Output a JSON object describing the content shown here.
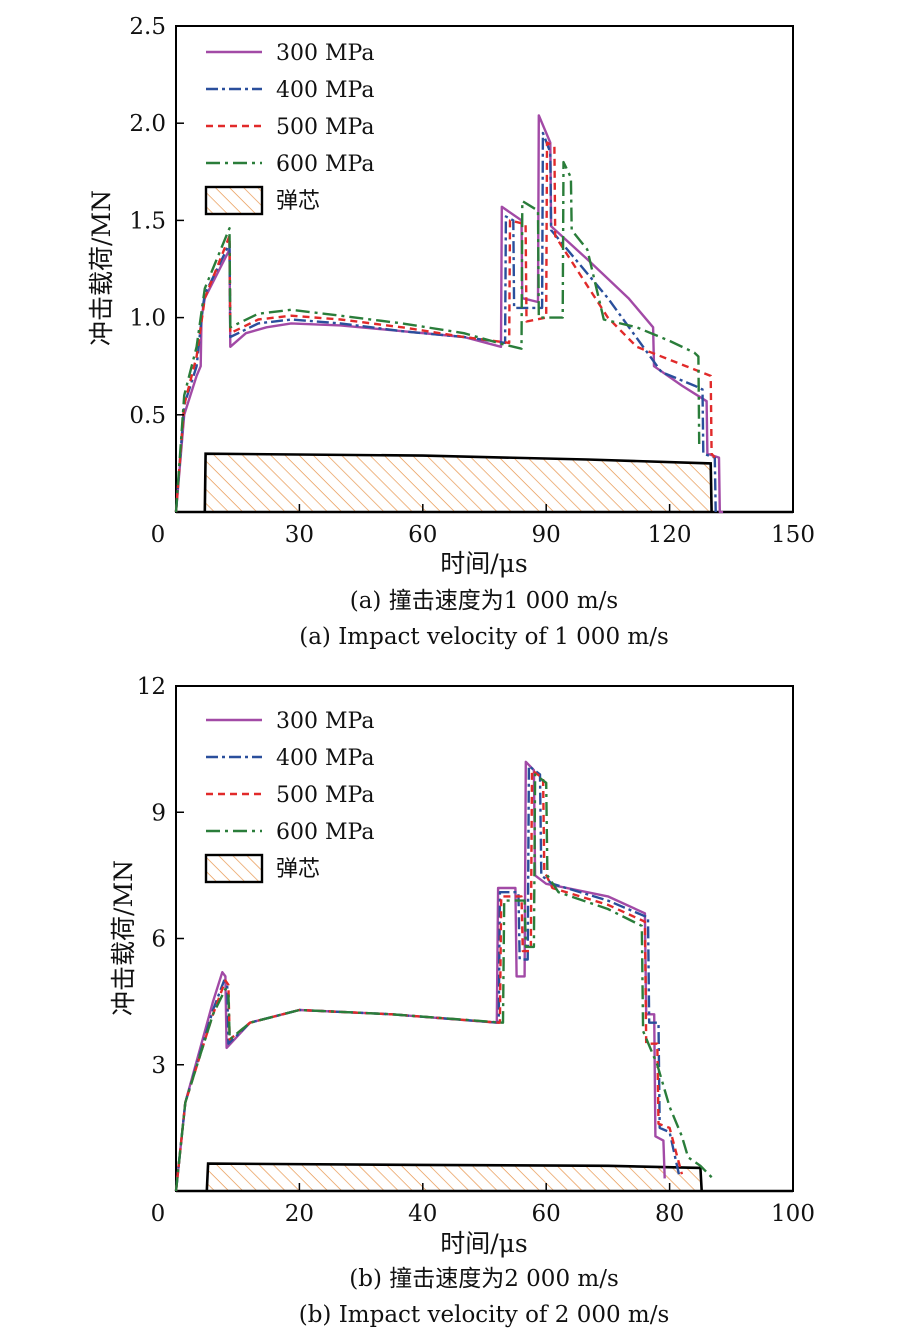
{
  "legend": {
    "s300": "300 MPa",
    "s400": "400 MPa",
    "s500": "500 MPa",
    "s600": "600 MPa",
    "core": "弹芯"
  },
  "colors": {
    "s300": "#a24aa6",
    "s400": "#2a4f9c",
    "s500": "#e12a2a",
    "s600": "#2a7d3a",
    "core": "#e8964f"
  },
  "chart_data": [
    {
      "type": "line",
      "xlabel": "时间/μs",
      "ylabel": "冲击载荷/MN",
      "xlim": [
        0,
        150
      ],
      "ylim": [
        0,
        2.5
      ],
      "xticks": [
        "0",
        "30",
        "60",
        "90",
        "120",
        "150"
      ],
      "yticks": [
        "0.5",
        "1.0",
        "1.5",
        "2.0",
        "2.5"
      ],
      "caption_cn": "(a) 撞击速度为1 000 m/s",
      "caption_en": "(a) Impact velocity of 1 000 m/s",
      "legend_position": "top-left",
      "grid": false,
      "series": [
        {
          "name": "300 MPa",
          "x": [
            0,
            2,
            5,
            6,
            6.2,
            7,
            13,
            13.2,
            17,
            22,
            28,
            40,
            55,
            70,
            79,
            79.2,
            84,
            84.2,
            88,
            88.2,
            91,
            91.2,
            100,
            110,
            116,
            116.2,
            123,
            129,
            129.2,
            132,
            132.2,
            133
          ],
          "y": [
            0,
            0.5,
            0.7,
            0.75,
            1.0,
            1.1,
            1.35,
            0.85,
            0.92,
            0.95,
            0.97,
            0.96,
            0.93,
            0.9,
            0.85,
            1.57,
            1.5,
            1.1,
            1.08,
            2.04,
            1.9,
            1.47,
            1.3,
            1.1,
            0.95,
            0.75,
            0.65,
            0.57,
            0.3,
            0.28,
            0.0,
            0.0
          ]
        },
        {
          "name": "400 MPa",
          "x": [
            0,
            2,
            5,
            6.5,
            7,
            13,
            13.2,
            20,
            28,
            40,
            55,
            70,
            80,
            80.2,
            82,
            82.2,
            89,
            89.2,
            91,
            91.2,
            105,
            118,
            126,
            128,
            128.2,
            131,
            131.2
          ],
          "y": [
            0,
            0.55,
            0.75,
            1.05,
            1.12,
            1.38,
            0.9,
            0.97,
            0.99,
            0.97,
            0.93,
            0.9,
            0.87,
            1.52,
            1.5,
            1.05,
            1.05,
            1.95,
            1.85,
            1.45,
            1.1,
            0.72,
            0.65,
            0.63,
            0.3,
            0.28,
            0.0
          ]
        },
        {
          "name": "500 MPa",
          "x": [
            0,
            2,
            5,
            7,
            13,
            13.2,
            20,
            28,
            40,
            55,
            70,
            81,
            81.2,
            85,
            85.2,
            90,
            90.2,
            92,
            92.2,
            105,
            112,
            124,
            130,
            130.2,
            131
          ],
          "y": [
            0,
            0.55,
            0.8,
            1.1,
            1.42,
            0.92,
            0.99,
            1.01,
            0.99,
            0.95,
            0.9,
            0.87,
            1.5,
            1.48,
            0.98,
            1.0,
            1.9,
            1.88,
            1.42,
            1.0,
            0.85,
            0.75,
            0.7,
            0.3,
            0.28
          ]
        },
        {
          "name": "600 MPa",
          "x": [
            0,
            2,
            5,
            7,
            13,
            13.2,
            20,
            28,
            40,
            55,
            70,
            80,
            84,
            84.2,
            88,
            88.2,
            94,
            94.2,
            96,
            96.2,
            100,
            104,
            112,
            120,
            126,
            127,
            127.2
          ],
          "y": [
            0,
            0.6,
            0.85,
            1.15,
            1.46,
            0.95,
            1.02,
            1.04,
            1.01,
            0.97,
            0.92,
            0.86,
            0.84,
            1.6,
            1.55,
            1.0,
            1.0,
            1.8,
            1.72,
            1.45,
            1.35,
            0.99,
            0.95,
            0.88,
            0.82,
            0.8,
            0.35
          ]
        },
        {
          "name": "弹芯",
          "x": [
            0,
            7,
            7.2,
            60,
            100,
            130,
            130.2,
            150
          ],
          "y": [
            0,
            0,
            0.3,
            0.29,
            0.27,
            0.25,
            0.0,
            0.0
          ]
        }
      ]
    },
    {
      "type": "line",
      "xlabel": "时间/μs",
      "ylabel": "冲击载荷/MN",
      "xlim": [
        0,
        100
      ],
      "ylim": [
        0,
        12
      ],
      "xticks": [
        "0",
        "20",
        "40",
        "60",
        "80",
        "100"
      ],
      "yticks": [
        "3",
        "6",
        "9",
        "12"
      ],
      "caption_cn": "(b) 撞击速度为2 000 m/s",
      "caption_en": "(b) Impact velocity of 2 000 m/s",
      "legend_position": "top-left",
      "grid": false,
      "series": [
        {
          "name": "300 MPa",
          "x": [
            0,
            1.5,
            6,
            7.5,
            8,
            8.2,
            12,
            20,
            35,
            52,
            52.2,
            55,
            55.2,
            56.5,
            56.7,
            58,
            58.2,
            60,
            70,
            76,
            76.2,
            77.5,
            77.7,
            79,
            79.2
          ],
          "y": [
            0,
            2.1,
            4.5,
            5.2,
            5.1,
            3.4,
            4.0,
            4.3,
            4.2,
            4.0,
            7.2,
            7.2,
            5.1,
            5.1,
            10.2,
            10.0,
            7.5,
            7.3,
            7.0,
            6.6,
            4.2,
            4.2,
            1.3,
            1.2,
            0.3
          ]
        },
        {
          "name": "400 MPa",
          "x": [
            0,
            1.5,
            6,
            7.8,
            8.3,
            8.5,
            12,
            20,
            35,
            52.3,
            52.5,
            55.5,
            55.7,
            57,
            57.2,
            59,
            59.2,
            61,
            70,
            76.5,
            76.7,
            78.2,
            78.4,
            80,
            81.5
          ],
          "y": [
            0,
            2.1,
            4.3,
            5.0,
            4.9,
            3.5,
            4.0,
            4.3,
            4.2,
            4.0,
            7.1,
            7.1,
            5.5,
            5.5,
            10.1,
            9.9,
            7.5,
            7.3,
            6.9,
            6.5,
            4.0,
            4.0,
            1.5,
            1.4,
            0.4
          ]
        },
        {
          "name": "500 MPa",
          "x": [
            0,
            1.5,
            6,
            8,
            8.5,
            8.7,
            12,
            20,
            35,
            52.5,
            52.7,
            56,
            56.2,
            57.5,
            57.7,
            59.5,
            59.7,
            61,
            70,
            76,
            76.2,
            78,
            78.2,
            80,
            82
          ],
          "y": [
            0,
            2.1,
            4.2,
            5.0,
            4.9,
            3.6,
            4.0,
            4.3,
            4.2,
            4.0,
            7.0,
            7.0,
            5.7,
            5.7,
            10.0,
            9.8,
            7.6,
            7.2,
            6.8,
            6.4,
            3.5,
            3.5,
            1.6,
            1.5,
            0.4
          ]
        },
        {
          "name": "600 MPa",
          "x": [
            0,
            1.5,
            6,
            8,
            8.5,
            8.7,
            12,
            20,
            35,
            53,
            53.2,
            56.5,
            56.7,
            58,
            58.2,
            60,
            60.2,
            62,
            70,
            75.5,
            75.7,
            78,
            80,
            82,
            83,
            85,
            87
          ],
          "y": [
            0,
            2.1,
            4.2,
            4.8,
            4.7,
            3.6,
            4.0,
            4.3,
            4.2,
            4.0,
            6.9,
            6.9,
            5.8,
            5.8,
            9.9,
            9.7,
            7.5,
            7.1,
            6.7,
            6.3,
            3.8,
            3.0,
            2.0,
            1.3,
            0.8,
            0.6,
            0.3
          ]
        },
        {
          "name": "弹芯",
          "x": [
            0,
            5,
            5.2,
            40,
            70,
            85,
            85.2,
            100
          ],
          "y": [
            0,
            0,
            0.65,
            0.62,
            0.6,
            0.55,
            0.0,
            0.0
          ]
        }
      ]
    }
  ]
}
